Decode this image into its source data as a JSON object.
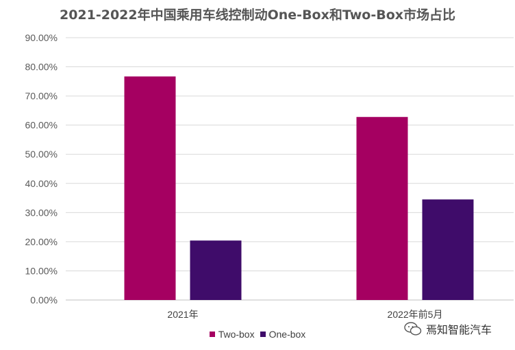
{
  "chart_data": {
    "type": "bar",
    "title": "2021-2022年中国乘用车线控制动One-Box和Two-Box市场占比",
    "categories": [
      "2021年",
      "2022年前5月"
    ],
    "series": [
      {
        "name": "Two-box",
        "values": [
          76.7,
          62.8
        ],
        "color": "#a50061"
      },
      {
        "name": "One-box",
        "values": [
          20.4,
          34.5
        ],
        "color": "#3f0c6a"
      }
    ],
    "y_ticks": [
      "0.00%",
      "10.00%",
      "20.00%",
      "30.00%",
      "40.00%",
      "50.00%",
      "60.00%",
      "70.00%",
      "80.00%",
      "90.00%"
    ],
    "ylim": [
      0,
      90
    ],
    "grid": true,
    "legend_position": "bottom"
  },
  "watermark": {
    "text": "焉知智能汽车",
    "icon": "wechat-icon"
  }
}
